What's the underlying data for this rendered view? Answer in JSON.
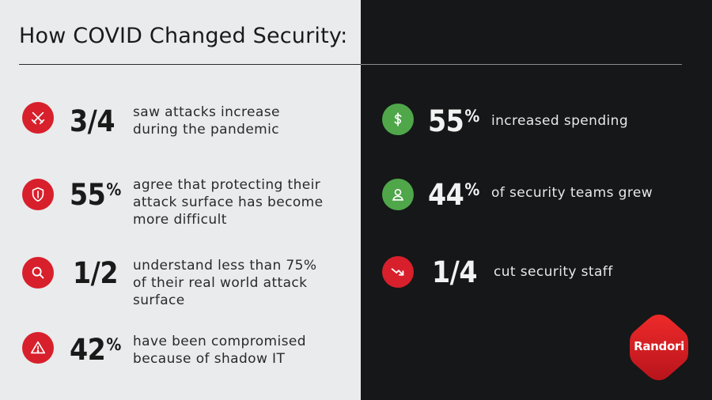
{
  "title": "How COVID Changed Security:",
  "left_stats": [
    {
      "icon": "crossed-swords-icon",
      "value": "3/4",
      "unit": "",
      "text": [
        "saw attacks increase",
        "during the pandemic"
      ]
    },
    {
      "icon": "shield-icon",
      "value": "55",
      "unit": "%",
      "text": [
        "agree that protecting their",
        "attack surface has become",
        "more difficult"
      ]
    },
    {
      "icon": "magnifier-icon",
      "value": "1/2",
      "unit": "",
      "text": [
        "understand less than 75%",
        "of their real world attack",
        "surface"
      ]
    },
    {
      "icon": "warning-icon",
      "value": "42",
      "unit": "%",
      "text": [
        "have been compromised",
        "because of shadow IT"
      ]
    }
  ],
  "right_stats": [
    {
      "icon": "dollar-icon",
      "value": "55",
      "unit": "%",
      "text": [
        "increased spending"
      ]
    },
    {
      "icon": "person-icon",
      "value": "44",
      "unit": "%",
      "text": [
        "of security teams grew"
      ]
    },
    {
      "icon": "trend-down-icon",
      "value": "1/4",
      "unit": "",
      "text": [
        "cut security staff"
      ]
    }
  ],
  "logo": {
    "text": "Randori"
  },
  "colors": {
    "left_background": "#eaebec",
    "right_background": "#151718",
    "accent_red": "#d7202c",
    "accent_green": "#4fa74a"
  }
}
